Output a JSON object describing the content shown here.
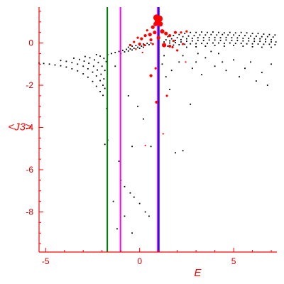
{
  "chart_data": {
    "type": "scatter",
    "xlabel": "E",
    "ylabel": "<J3>",
    "xlim": [
      -5.35,
      7.3
    ],
    "ylim": [
      -9.9,
      1.7
    ],
    "x_ticks": [
      -5,
      0,
      5
    ],
    "x_tick_labels": [
      "-5",
      "0",
      "5"
    ],
    "y_ticks": [
      0,
      -2,
      -4,
      -6,
      -8
    ],
    "y_tick_labels": [
      "0",
      "-2",
      "-4",
      "-6",
      "-8"
    ],
    "grid": false,
    "colors": {
      "axis": "#ff0000",
      "black_points": "#000000",
      "red_points": "#ff0000",
      "line_green": "#008000",
      "line_magenta": "#ff00ff",
      "line_blue": "#0000ff",
      "line_pink": "#ff00ff"
    },
    "vertical_lines": [
      {
        "x": -1.72,
        "color": "#008000"
      },
      {
        "x": -1.02,
        "color": "#ff00ff"
      },
      {
        "x": 0.96,
        "color": "#ff00ff"
      },
      {
        "x": 1.02,
        "color": "#0000ff"
      }
    ],
    "series": [
      {
        "color": "#000000",
        "points": [
          [
            -5.35,
            -0.95
          ],
          [
            -5.1,
            -0.97
          ],
          [
            -4.8,
            -1.0
          ],
          [
            -4.5,
            -1.04
          ],
          [
            -4.2,
            -1.08
          ],
          [
            -3.9,
            -1.14
          ],
          [
            -3.6,
            -1.22
          ],
          [
            -3.3,
            -1.32
          ],
          [
            -3.0,
            -1.46
          ],
          [
            -2.75,
            -1.62
          ],
          [
            -2.5,
            -1.82
          ],
          [
            -2.3,
            -2.05
          ],
          [
            -2.1,
            -2.3
          ],
          [
            -1.95,
            -2.48
          ],
          [
            -4.2,
            -0.83
          ],
          [
            -3.9,
            -0.87
          ],
          [
            -3.6,
            -0.93
          ],
          [
            -3.3,
            -1.0
          ],
          [
            -3.0,
            -1.1
          ],
          [
            -2.75,
            -1.22
          ],
          [
            -2.5,
            -1.38
          ],
          [
            -2.3,
            -1.56
          ],
          [
            -2.1,
            -1.78
          ],
          [
            -1.95,
            -2.0
          ],
          [
            -1.85,
            -2.15
          ],
          [
            -3.5,
            -0.72
          ],
          [
            -3.2,
            -0.78
          ],
          [
            -2.95,
            -0.86
          ],
          [
            -2.7,
            -0.96
          ],
          [
            -2.45,
            -1.1
          ],
          [
            -2.25,
            -1.28
          ],
          [
            -2.05,
            -1.48
          ],
          [
            -1.9,
            -1.7
          ],
          [
            -2.9,
            -0.64
          ],
          [
            -2.65,
            -0.7
          ],
          [
            -2.4,
            -0.8
          ],
          [
            -2.2,
            -0.93
          ],
          [
            -2.0,
            -1.1
          ],
          [
            -1.85,
            -1.3
          ],
          [
            -2.3,
            -0.55
          ],
          [
            -2.1,
            -0.62
          ],
          [
            -1.9,
            -0.73
          ],
          [
            -1.78,
            -0.88
          ],
          [
            -1.7,
            -0.55
          ],
          [
            -1.5,
            -0.5
          ],
          [
            -1.3,
            -0.45
          ],
          [
            -1.1,
            -0.4
          ],
          [
            -0.9,
            -0.35
          ],
          [
            -0.7,
            -0.3
          ],
          [
            -0.5,
            -0.28
          ],
          [
            -0.3,
            -0.25
          ],
          [
            -0.1,
            -0.2
          ],
          [
            0.1,
            -0.15
          ],
          [
            0.3,
            -0.12
          ],
          [
            0.5,
            -0.08
          ],
          [
            -1.0,
            -0.5
          ],
          [
            -0.8,
            -0.42
          ],
          [
            -0.6,
            -0.38
          ],
          [
            -0.4,
            -0.33
          ],
          [
            -0.2,
            -0.28
          ],
          [
            0.0,
            -0.25
          ],
          [
            0.2,
            -0.2
          ],
          [
            -0.6,
            -0.2
          ],
          [
            -0.4,
            -0.15
          ],
          [
            -0.2,
            -0.12
          ],
          [
            0.0,
            -0.1
          ],
          [
            0.2,
            -0.05
          ],
          [
            0.4,
            -0.02
          ],
          [
            0.6,
            0.0
          ],
          [
            1.5,
            0.3
          ],
          [
            1.8,
            0.35
          ],
          [
            2.1,
            0.4
          ],
          [
            2.4,
            0.45
          ],
          [
            2.7,
            0.5
          ],
          [
            3.0,
            0.5
          ],
          [
            3.3,
            0.52
          ],
          [
            3.6,
            0.5
          ],
          [
            3.9,
            0.52
          ],
          [
            4.2,
            0.5
          ],
          [
            4.5,
            0.48
          ],
          [
            4.8,
            0.5
          ],
          [
            5.1,
            0.48
          ],
          [
            5.4,
            0.5
          ],
          [
            5.7,
            0.48
          ],
          [
            6.0,
            0.45
          ],
          [
            6.3,
            0.45
          ],
          [
            6.6,
            0.42
          ],
          [
            6.9,
            0.4
          ],
          [
            7.2,
            0.38
          ],
          [
            1.4,
            0.15
          ],
          [
            1.7,
            0.2
          ],
          [
            2.0,
            0.25
          ],
          [
            2.3,
            0.3
          ],
          [
            2.6,
            0.33
          ],
          [
            2.9,
            0.35
          ],
          [
            3.2,
            0.38
          ],
          [
            3.5,
            0.38
          ],
          [
            3.8,
            0.4
          ],
          [
            4.1,
            0.38
          ],
          [
            4.4,
            0.4
          ],
          [
            4.7,
            0.38
          ],
          [
            5.0,
            0.38
          ],
          [
            5.3,
            0.35
          ],
          [
            5.6,
            0.35
          ],
          [
            5.9,
            0.33
          ],
          [
            6.2,
            0.32
          ],
          [
            6.5,
            0.3
          ],
          [
            6.8,
            0.3
          ],
          [
            7.1,
            0.28
          ],
          [
            1.3,
            0.05
          ],
          [
            1.6,
            0.1
          ],
          [
            1.9,
            0.12
          ],
          [
            2.2,
            0.16
          ],
          [
            2.5,
            0.2
          ],
          [
            2.8,
            0.22
          ],
          [
            3.1,
            0.25
          ],
          [
            3.4,
            0.25
          ],
          [
            3.7,
            0.26
          ],
          [
            4.0,
            0.26
          ],
          [
            4.3,
            0.25
          ],
          [
            4.6,
            0.26
          ],
          [
            4.9,
            0.25
          ],
          [
            5.2,
            0.24
          ],
          [
            5.5,
            0.22
          ],
          [
            5.8,
            0.22
          ],
          [
            6.1,
            0.2
          ],
          [
            6.4,
            0.2
          ],
          [
            6.7,
            0.18
          ],
          [
            7.0,
            0.16
          ],
          [
            1.3,
            -0.05
          ],
          [
            1.6,
            0.0
          ],
          [
            1.9,
            0.02
          ],
          [
            2.2,
            0.05
          ],
          [
            2.5,
            0.08
          ],
          [
            2.8,
            0.1
          ],
          [
            3.1,
            0.12
          ],
          [
            3.4,
            0.12
          ],
          [
            3.7,
            0.14
          ],
          [
            4.0,
            0.14
          ],
          [
            4.3,
            0.12
          ],
          [
            4.6,
            0.14
          ],
          [
            4.9,
            0.12
          ],
          [
            5.2,
            0.12
          ],
          [
            5.5,
            0.1
          ],
          [
            5.8,
            0.1
          ],
          [
            6.1,
            0.08
          ],
          [
            6.4,
            0.08
          ],
          [
            6.7,
            0.06
          ],
          [
            7.0,
            0.05
          ],
          [
            7.25,
            0.05
          ],
          [
            1.5,
            -0.15
          ],
          [
            1.8,
            -0.1
          ],
          [
            2.1,
            -0.08
          ],
          [
            2.4,
            -0.06
          ],
          [
            2.7,
            -0.04
          ],
          [
            3.0,
            -0.03
          ],
          [
            3.3,
            -0.02
          ],
          [
            3.6,
            -0.02
          ],
          [
            3.9,
            0.0
          ],
          [
            4.2,
            0.0
          ],
          [
            4.5,
            -0.02
          ],
          [
            4.8,
            0.0
          ],
          [
            5.1,
            -0.02
          ],
          [
            5.4,
            -0.02
          ],
          [
            5.7,
            -0.04
          ],
          [
            6.0,
            -0.04
          ],
          [
            6.3,
            -0.05
          ],
          [
            6.6,
            -0.06
          ],
          [
            6.9,
            -0.06
          ],
          [
            7.2,
            -0.08
          ],
          [
            2.5,
            -0.2
          ],
          [
            3.0,
            -0.18
          ],
          [
            3.5,
            -0.15
          ],
          [
            4.0,
            -0.12
          ],
          [
            4.5,
            -0.15
          ],
          [
            5.0,
            -0.12
          ],
          [
            5.5,
            -0.15
          ],
          [
            6.0,
            -0.18
          ],
          [
            6.5,
            -0.2
          ],
          [
            7.0,
            -0.2
          ],
          [
            2.3,
            -0.6
          ],
          [
            3.0,
            -0.9
          ],
          [
            3.5,
            -0.7
          ],
          [
            4.0,
            -1.1
          ],
          [
            4.2,
            -0.5
          ],
          [
            4.6,
            -1.3
          ],
          [
            5.0,
            -0.8
          ],
          [
            5.3,
            -1.6
          ],
          [
            5.6,
            -1.2
          ],
          [
            5.9,
            -0.9
          ],
          [
            6.2,
            -1.8
          ],
          [
            6.5,
            -1.4
          ],
          [
            6.8,
            -2.0
          ],
          [
            7.0,
            -1.0
          ],
          [
            2.8,
            -1.2
          ],
          [
            3.3,
            -1.5
          ],
          [
            3.8,
            -0.4
          ],
          [
            4.4,
            -0.9
          ],
          [
            2.1,
            -0.9
          ],
          [
            1.7,
            -1.3
          ],
          [
            3.1,
            -0.5
          ],
          [
            1.2,
            -1.0
          ],
          [
            1.4,
            -1.6
          ],
          [
            1.3,
            -0.6
          ],
          [
            2.7,
            -2.9
          ],
          [
            1.6,
            -2.2
          ],
          [
            1.9,
            -5.2
          ],
          [
            2.3,
            -5.1
          ],
          [
            0.6,
            -4.9
          ],
          [
            -0.4,
            -4.9
          ],
          [
            -1.1,
            -5.6
          ],
          [
            -1.0,
            -6.5
          ],
          [
            -0.8,
            -6.8
          ],
          [
            -0.5,
            -7.1
          ],
          [
            -0.3,
            -7.3
          ],
          [
            -1.4,
            -7.5
          ],
          [
            0.0,
            -7.6
          ],
          [
            0.3,
            -8.0
          ],
          [
            0.5,
            -8.2
          ],
          [
            -0.8,
            -8.2
          ],
          [
            -1.2,
            -8.8
          ],
          [
            -0.4,
            -9.0
          ],
          [
            0.2,
            -3.6
          ],
          [
            -0.6,
            -2.5
          ],
          [
            -1.3,
            -1.1
          ],
          [
            -0.1,
            -3.0
          ],
          [
            -1.75,
            -3.1
          ],
          [
            -1.85,
            -4.8
          ],
          [
            -1.7,
            -4.6
          ]
        ]
      },
      {
        "color": "#ff00ff",
        "note_points": "red",
        "points": []
      }
    ],
    "red_points": [
      [
        0.9,
        1.2,
        8
      ],
      [
        0.95,
        1.0,
        7
      ],
      [
        1.05,
        1.15,
        8
      ],
      [
        0.85,
        0.9,
        5
      ],
      [
        1.1,
        0.9,
        6
      ],
      [
        0.7,
        0.75,
        4
      ],
      [
        0.55,
        0.4,
        4
      ],
      [
        0.8,
        0.5,
        4
      ],
      [
        1.2,
        0.55,
        5
      ],
      [
        1.4,
        0.45,
        4
      ],
      [
        1.6,
        0.35,
        3
      ],
      [
        1.9,
        0.5,
        3
      ],
      [
        2.2,
        0.5,
        2
      ],
      [
        2.5,
        0.55,
        2
      ],
      [
        0.3,
        0.35,
        3
      ],
      [
        0.1,
        0.2,
        3
      ],
      [
        -0.1,
        0.25,
        2
      ],
      [
        0.4,
        0.6,
        2
      ],
      [
        0.6,
        0.15,
        3
      ],
      [
        1.0,
        0.25,
        4
      ],
      [
        1.3,
        -0.1,
        5
      ],
      [
        1.6,
        -0.15,
        3
      ],
      [
        2.0,
        -0.35,
        2
      ],
      [
        2.3,
        -0.05,
        2
      ],
      [
        0.25,
        -0.1,
        2
      ],
      [
        0.0,
        -0.05,
        3
      ],
      [
        -0.3,
        0.05,
        2
      ],
      [
        -0.5,
        -0.1,
        2
      ],
      [
        0.7,
        -0.05,
        2
      ],
      [
        1.8,
        0.1,
        2
      ],
      [
        0.6,
        -1.55,
        3
      ],
      [
        0.85,
        -1.2,
        2
      ],
      [
        0.9,
        -2.8,
        3
      ],
      [
        1.45,
        -2.5,
        2
      ],
      [
        1.25,
        -4.3,
        1
      ],
      [
        0.3,
        -4.85,
        1
      ],
      [
        2.45,
        -0.9,
        1
      ],
      [
        1.75,
        -0.2,
        2
      ],
      [
        0.15,
        -0.45,
        1
      ],
      [
        -0.2,
        -0.3,
        1
      ]
    ]
  }
}
